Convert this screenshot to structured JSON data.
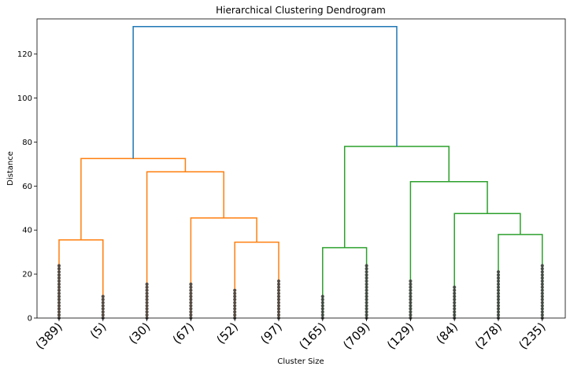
{
  "chart_data": {
    "type": "dendrogram",
    "title": "Hierarchical Clustering Dendrogram",
    "xlabel": "Cluster Size",
    "ylabel": "Distance",
    "ylim": [
      0,
      136
    ],
    "yticks": [
      0,
      20,
      40,
      60,
      80,
      100,
      120
    ],
    "leaves": [
      "(389)",
      "(5)",
      "(30)",
      "(67)",
      "(52)",
      "(97)",
      "(165)",
      "(709)",
      "(129)",
      "(84)",
      "(278)",
      "(235)"
    ],
    "colors": {
      "orange": "#ff7f0e",
      "green": "#2ca02c",
      "blue": "#1f77b4",
      "dots": "#3a3a3a"
    },
    "links": [
      {
        "left": 0,
        "right": 1,
        "height": 35.5,
        "lh": 0,
        "rh": 0,
        "color": "orange"
      },
      {
        "left": 4,
        "right": 5,
        "height": 34.5,
        "lh": 0,
        "rh": 0,
        "color": "orange"
      },
      {
        "left": 3,
        "right": 4.5,
        "height": 45.5,
        "lh": 0,
        "rh": 34.5,
        "color": "orange"
      },
      {
        "left": 2,
        "right": 3.75,
        "height": 66.5,
        "lh": 0,
        "rh": 45.5,
        "color": "orange"
      },
      {
        "left": 0.5,
        "right": 2.875,
        "height": 72.5,
        "lh": 35.5,
        "rh": 66.5,
        "color": "orange"
      },
      {
        "left": 6,
        "right": 7,
        "height": 32,
        "lh": 0,
        "rh": 0,
        "color": "green"
      },
      {
        "left": 10,
        "right": 11,
        "height": 38,
        "lh": 0,
        "rh": 0,
        "color": "green"
      },
      {
        "left": 9,
        "right": 10.5,
        "height": 47.5,
        "lh": 0,
        "rh": 38,
        "color": "green"
      },
      {
        "left": 8,
        "right": 9.75,
        "height": 62,
        "lh": 0,
        "rh": 47.5,
        "color": "green"
      },
      {
        "left": 6.5,
        "right": 8.875,
        "height": 78,
        "lh": 32,
        "rh": 62,
        "color": "green"
      },
      {
        "left": 1.6875,
        "right": 7.6875,
        "height": 132.5,
        "lh": 72.5,
        "rh": 78,
        "color": "blue"
      }
    ],
    "leaf_dot_max": [
      25,
      10,
      16,
      16,
      13.5,
      18,
      10.5,
      25,
      17.5,
      14.5,
      21,
      24.5
    ],
    "grid": false,
    "legend": "none"
  }
}
